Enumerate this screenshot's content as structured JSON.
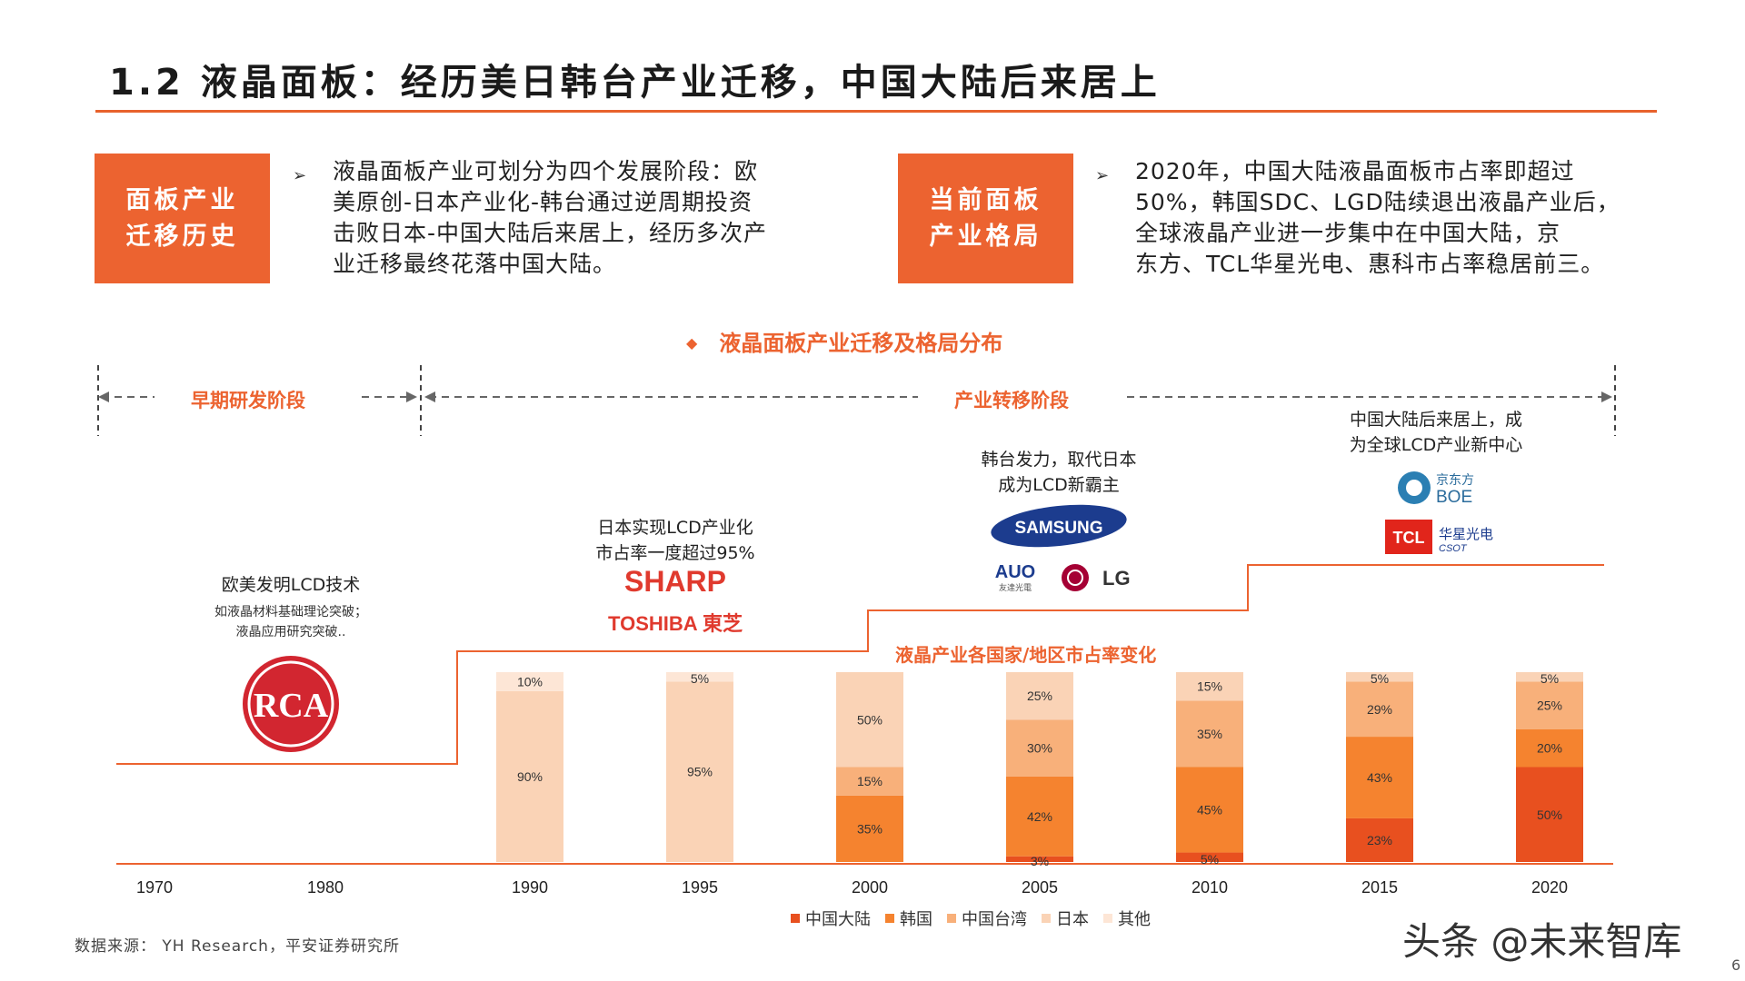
{
  "title": "1.2 液晶面板：经历美日韩台产业迁移，中国大陆后来居上",
  "box_left": {
    "line1": "面板产业",
    "line2": "迁移历史"
  },
  "box_right": {
    "line1": "当前面板",
    "line2": "产业格局"
  },
  "bullet_glyph": "➢",
  "para_left": [
    "液晶面板产业可划分为四个发展阶段：欧",
    "美原创-日本产业化-韩台通过逆周期投资",
    "击败日本-中国大陆后来居上，经历多次产",
    "业迁移最终花落中国大陆。"
  ],
  "para_right": [
    "2020年，中国大陆液晶面板市占率即超过",
    "50%，韩国SDC、LGD陆续退出液晶产业后，",
    "全球液晶产业进一步集中在中国大陆，京",
    "东方、TCL华星光电、惠科市占率稳居前三。"
  ],
  "chart_heading": {
    "marker": "◆",
    "text": "液晶面板产业迁移及格局分布"
  },
  "stages": {
    "early": "早期研发阶段",
    "transfer": "产业转移阶段"
  },
  "annotations": {
    "us_eu": "欧美发明LCD技术",
    "us_eu_sub": [
      "如液晶材料基础理论突破；",
      "液晶应用研究突破.."
    ],
    "japan": [
      "日本实现LCD产业化",
      "市占率一度超过95%"
    ],
    "korea_tw": [
      "韩台发力，取代日本",
      "成为LCD新霸主"
    ],
    "china": [
      "中国大陆后来居上，成",
      "为全球LCD产业新中心"
    ]
  },
  "logos": {
    "rca": "RCA",
    "sharp": "SHARP",
    "toshiba": "TOSHIBA 東芝",
    "samsung": "SAMSUNG",
    "auo": "AUO",
    "auo_sub": "友達光電",
    "lg": "LG",
    "boe_cn": "京东方",
    "boe": "BOE",
    "tcl": "TCL",
    "csot_cn": "华星光电",
    "csot": "CSOT"
  },
  "share_title": "液晶产业各国家/地区市占率变化",
  "chart_data": {
    "type": "bar",
    "stacked": true,
    "categories": [
      "1970",
      "1980",
      "1990",
      "1995",
      "2000",
      "2005",
      "2010",
      "2015",
      "2020"
    ],
    "series": [
      {
        "name": "中国大陆",
        "color": "#e8501f",
        "values": [
          null,
          null,
          0,
          0,
          0,
          3,
          5,
          23,
          50
        ]
      },
      {
        "name": "韩国",
        "color": "#f5832f",
        "values": [
          null,
          null,
          0,
          0,
          35,
          42,
          45,
          43,
          20
        ]
      },
      {
        "name": "中国台湾",
        "color": "#f8b07a",
        "values": [
          null,
          null,
          0,
          0,
          15,
          30,
          35,
          29,
          25
        ]
      },
      {
        "name": "日本",
        "color": "#fad3b6",
        "values": [
          null,
          null,
          90,
          95,
          50,
          25,
          15,
          5,
          5
        ]
      },
      {
        "name": "其他",
        "color": "#fde6d6",
        "values": [
          null,
          null,
          10,
          5,
          0,
          0,
          0,
          0,
          0
        ]
      }
    ],
    "ylim": [
      0,
      100
    ]
  },
  "source": "数据来源： YH Research，平安证券研究所",
  "watermark": "头条 @未来智库",
  "page_number": "6"
}
